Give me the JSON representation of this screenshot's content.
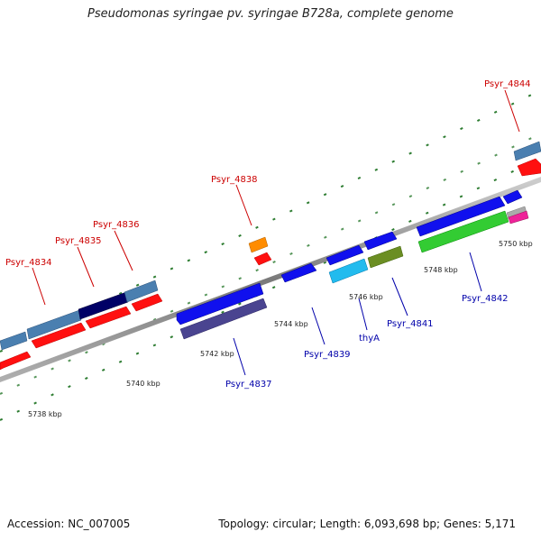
{
  "title": "Pseudomonas syringae pv. syringae B728a, complete genome",
  "accession": "Accession: NC_007005",
  "summary": "Topology: circular; Length: 6,093,698 bp; Genes: 5,171",
  "colors": {
    "backbone": "#8c8c8c",
    "label_top": "#cc0000",
    "label_bottom": "#0000aa",
    "tick_dot": "#2e7d32"
  },
  "scale_labels": [
    "5738 kbp",
    "5740 kbp",
    "5742 kbp",
    "5744 kbp",
    "5746 kbp",
    "5748 kbp",
    "5750 kbp"
  ],
  "gene_labels_top": [
    "Psyr_4834",
    "Psyr_4835",
    "Psyr_4836",
    "Psyr_4838",
    "Psyr_4844"
  ],
  "gene_labels_bottom": [
    "Psyr_4837",
    "Psyr_4839",
    "thyA",
    "Psyr_4841",
    "Psyr_4842"
  ]
}
